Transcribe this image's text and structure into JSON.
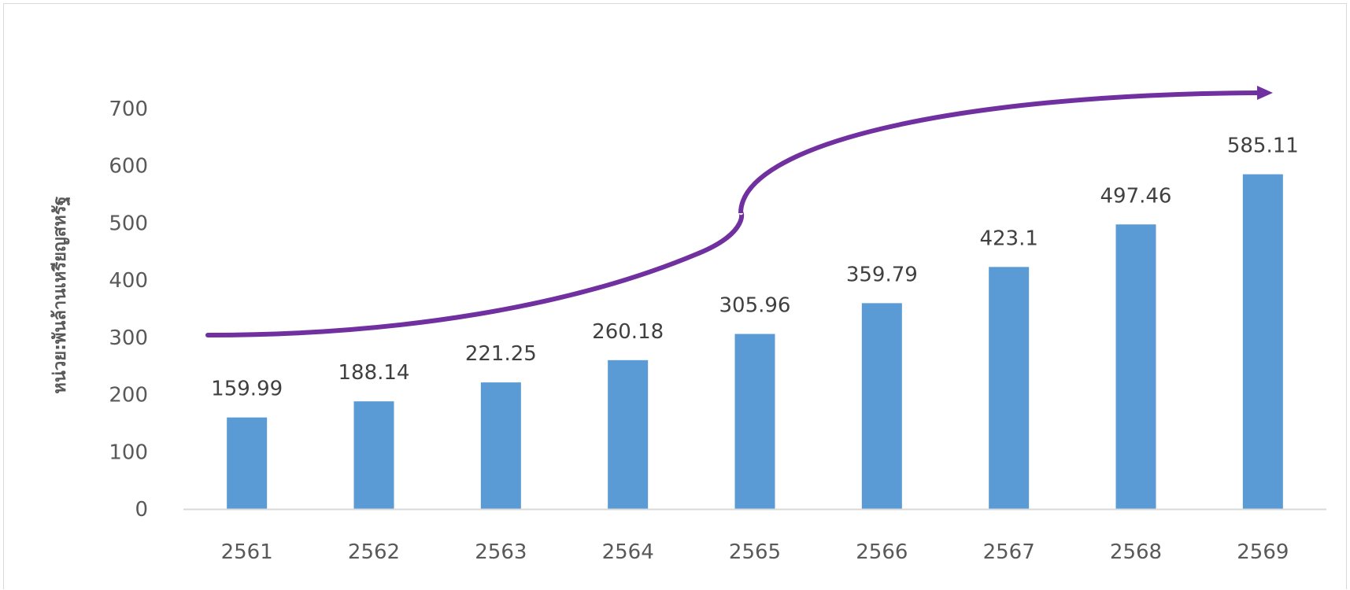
{
  "chart_data": {
    "type": "bar",
    "title": "",
    "xlabel": "",
    "ylabel": "หน่วย:พันล้านเหรียญสหรัฐ",
    "categories": [
      "2561",
      "2562",
      "2563",
      "2564",
      "2565",
      "2566",
      "2567",
      "2568",
      "2569"
    ],
    "series": [
      {
        "values": [
          159.99,
          188.14,
          221.25,
          260.18,
          305.96,
          359.79,
          423.1,
          497.46,
          585.11
        ],
        "data_labels": [
          "159.99",
          "188.14",
          "221.25",
          "260.18",
          "305.96",
          "359.79",
          "423.1",
          "497.46",
          "585.11"
        ]
      }
    ],
    "ylim": [
      0,
      700
    ],
    "yticks": [
      "0",
      "100",
      "200",
      "300",
      "400",
      "500",
      "600",
      "700"
    ],
    "grid": false,
    "legend": "none",
    "annotations": [
      {
        "type": "trend-arrow",
        "description": "S-shaped rising curve with arrowhead"
      }
    ],
    "colors": {
      "bar": "#5b9bd5",
      "trend_arrow": "#7030a0",
      "axis_line": "#d9d9d9",
      "tick_text": "#595959",
      "label_text": "#404040"
    }
  }
}
